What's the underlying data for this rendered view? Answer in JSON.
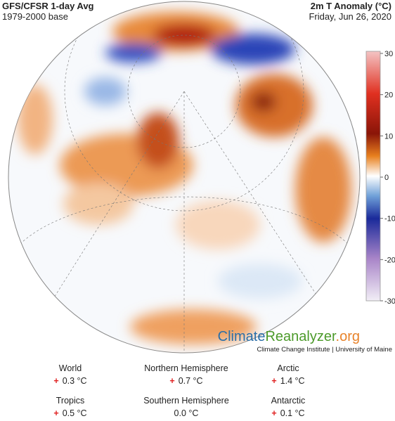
{
  "header": {
    "title": "GFS/CFSR 1-day Avg",
    "base": "1979-2000 base",
    "variable": "2m T Anomaly (°C)",
    "date": "Friday, Jun 26, 2020"
  },
  "colorbar": {
    "lim": [
      -30,
      30
    ],
    "ticks": [
      30,
      20,
      10,
      0,
      -10,
      -20,
      -30
    ]
  },
  "branding": {
    "part1": "Climate",
    "part2": "Reanalyzer",
    "part3": ".org",
    "subtitle": "Climate Change Institute | University of Maine"
  },
  "stats": [
    {
      "name": "World",
      "sign": "+",
      "value": "0.3 °C"
    },
    {
      "name": "Northern Hemisphere",
      "sign": "+",
      "value": "0.7 °C"
    },
    {
      "name": "Arctic",
      "sign": "+",
      "value": "1.4 °C"
    },
    {
      "name": "Tropics",
      "sign": "+",
      "value": "0.5 °C"
    },
    {
      "name": "Southern Hemisphere",
      "value": "0.0 °C"
    },
    {
      "name": "Antarctic",
      "sign": "+",
      "value": "0.1 °C"
    }
  ]
}
